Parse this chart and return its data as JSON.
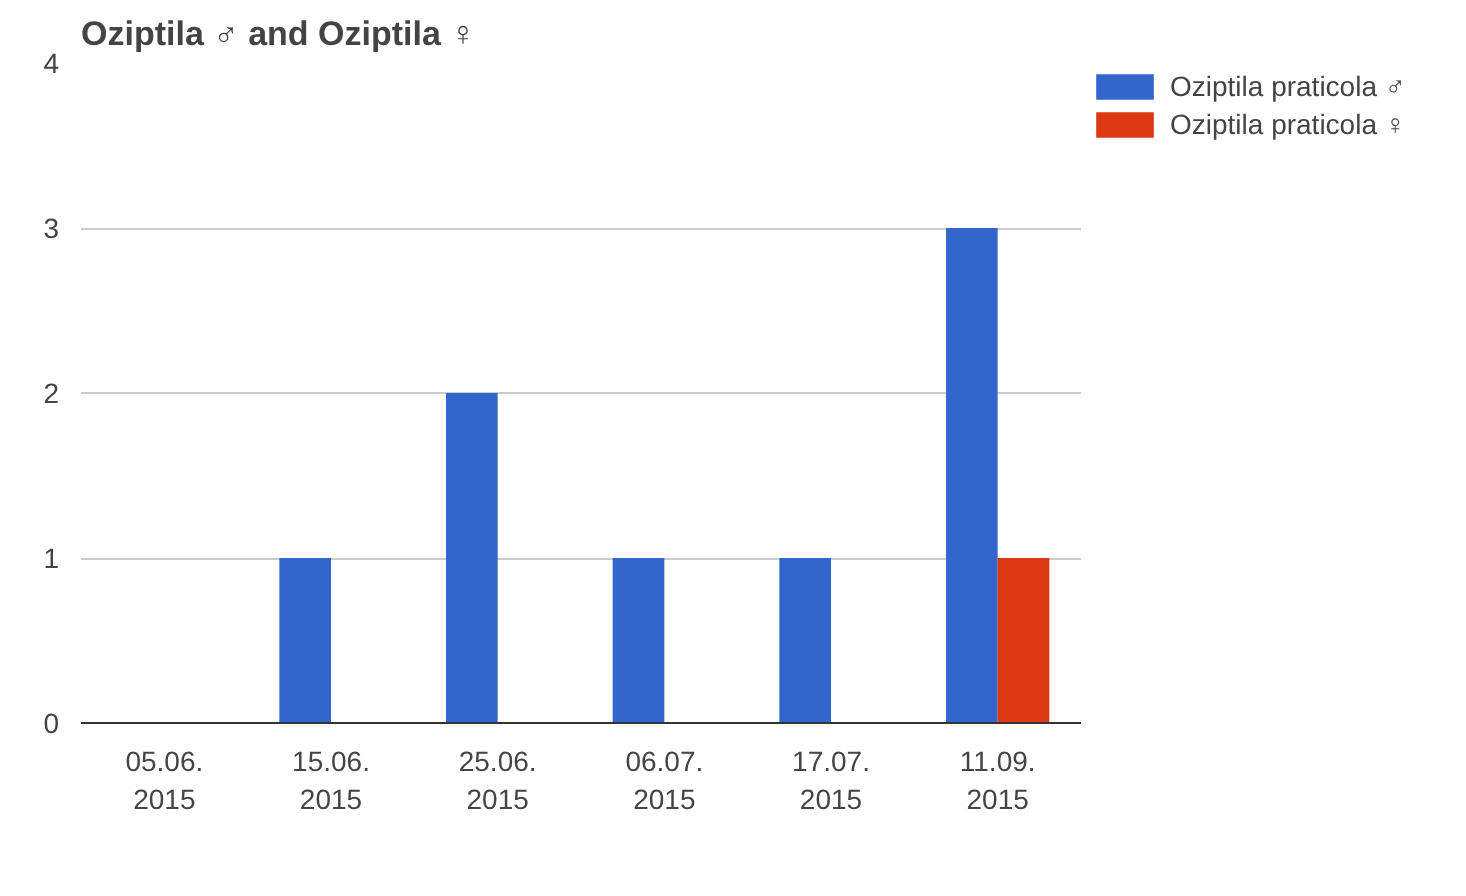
{
  "chart_data": {
    "type": "bar",
    "title": "Oziptila ♂ and Oziptila ♀",
    "categories": [
      "05.06.\n2015",
      "15.06.\n2015",
      "25.06.\n2015",
      "06.07.\n2015",
      "17.07.\n2015",
      "11.09.\n2015"
    ],
    "series": [
      {
        "name": "Oziptila praticola ♂",
        "color": "#3366cc",
        "values": [
          0,
          1,
          2,
          1,
          1,
          3
        ]
      },
      {
        "name": "Oziptila praticola ♀",
        "color": "#dc3912",
        "values": [
          0,
          0,
          0,
          0,
          0,
          1
        ]
      }
    ],
    "ylim": [
      0,
      4
    ],
    "yticks": [
      0,
      1,
      2,
      3,
      4
    ],
    "grid": "y",
    "legend": "top right"
  }
}
